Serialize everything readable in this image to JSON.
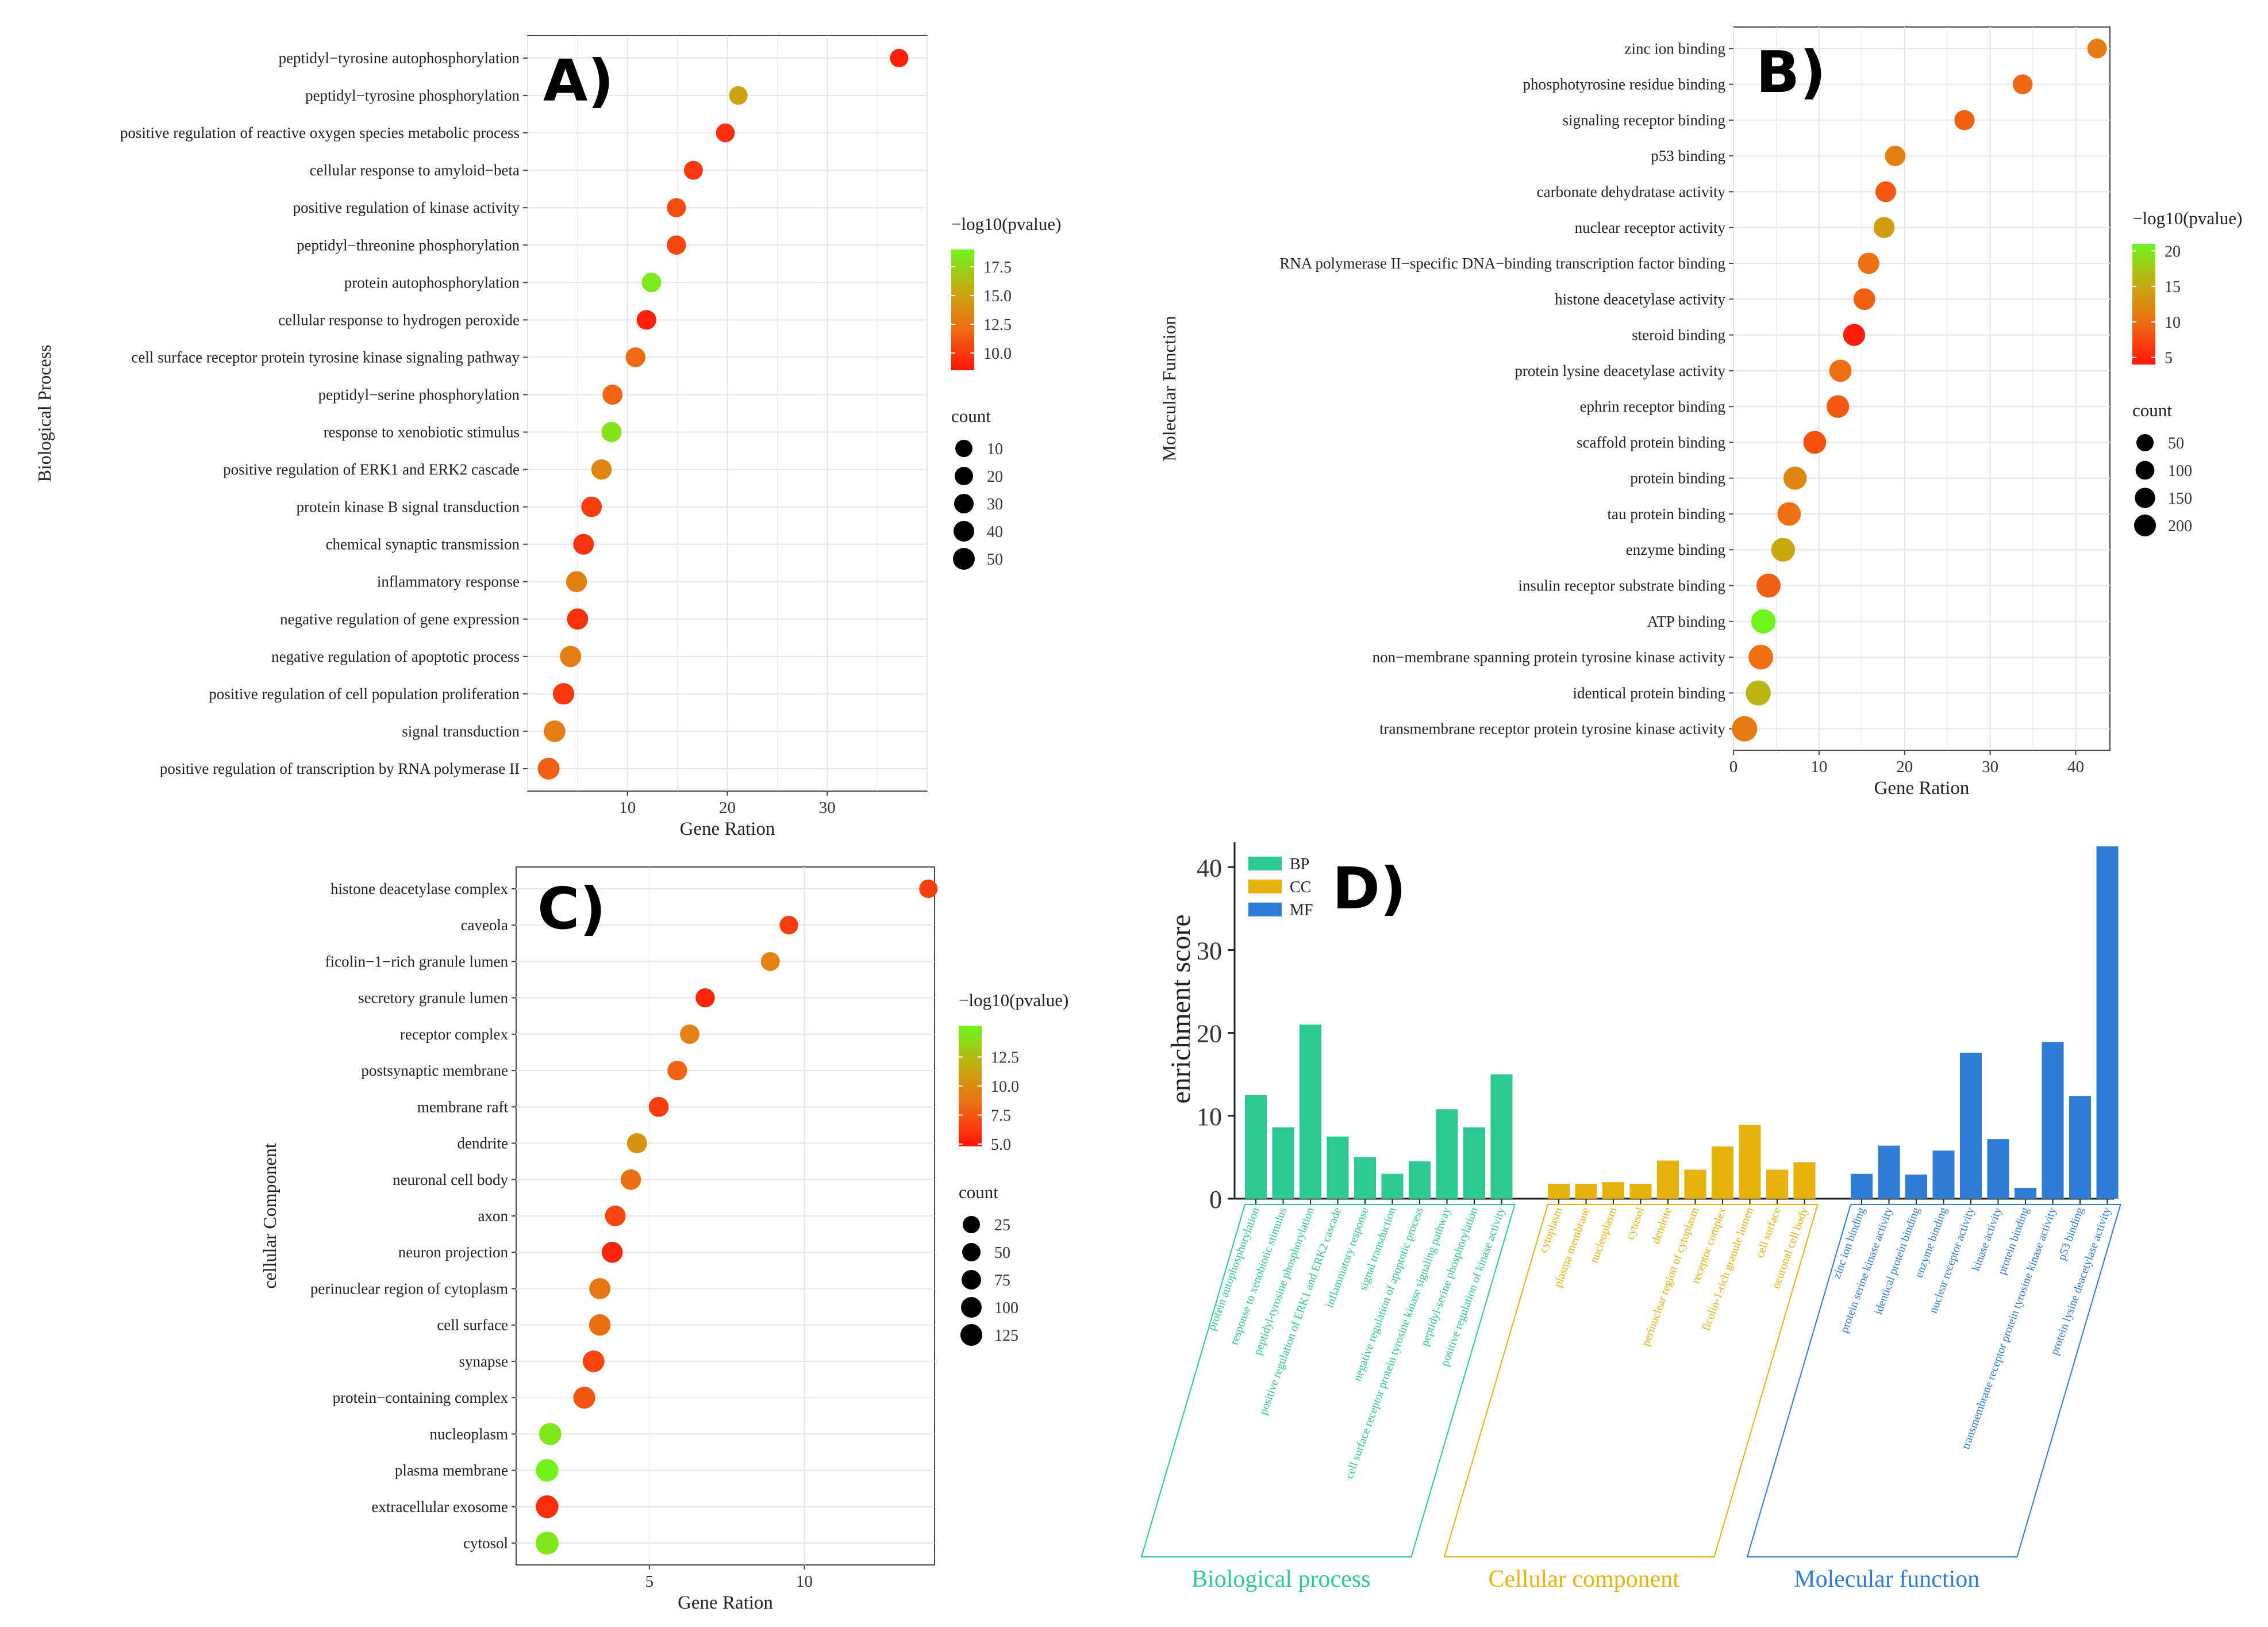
{
  "chart_data": [
    {
      "panel": "A)",
      "type": "scatter",
      "xlabel": "Gene Ration",
      "ylabel": "Biological Process",
      "xlim": [
        0,
        40
      ],
      "xticks": [
        10,
        20,
        30
      ],
      "color_legend_title": "−log10(pvalue)",
      "color_range": [
        8.5,
        19
      ],
      "color_ticks": [
        "17.5",
        "15.0",
        "12.5",
        "10.0"
      ],
      "color_tick_values": [
        17.5,
        15.0,
        12.5,
        10.0
      ],
      "size_legend_title": "count",
      "size_ticks": [
        "10",
        "20",
        "30",
        "40",
        "50"
      ],
      "terms": [
        {
          "label": "peptidyl−tyrosine autophosphorylation",
          "x": 37.2,
          "p": 9.0
        },
        {
          "label": "peptidyl−tyrosine phosphorylation",
          "x": 21.1,
          "p": 15.0
        },
        {
          "label": "positive regulation of reactive oxygen species metabolic process",
          "x": 19.8,
          "p": 9.6
        },
        {
          "label": "cellular response to amyloid−beta",
          "x": 16.6,
          "p": 10.0
        },
        {
          "label": "positive regulation of kinase activity",
          "x": 14.9,
          "p": 10.8
        },
        {
          "label": "peptidyl−threonine phosphorylation",
          "x": 14.9,
          "p": 10.6
        },
        {
          "label": "protein autophosphorylation",
          "x": 12.4,
          "p": 18.5
        },
        {
          "label": "cellular response to hydrogen peroxide",
          "x": 11.9,
          "p": 9.0
        },
        {
          "label": "cell surface receptor protein tyrosine kinase signaling pathway",
          "x": 10.8,
          "p": 12.0
        },
        {
          "label": "peptidyl−serine phosphorylation",
          "x": 8.5,
          "p": 11.8
        },
        {
          "label": "response to xenobiotic stimulus",
          "x": 8.4,
          "p": 18.0
        },
        {
          "label": "positive regulation of ERK1 and ERK2 cascade",
          "x": 7.4,
          "p": 13.5
        },
        {
          "label": "protein kinase B signal transduction",
          "x": 6.4,
          "p": 10.2
        },
        {
          "label": "chemical synaptic transmission",
          "x": 5.6,
          "p": 9.8
        },
        {
          "label": "inflammatory response",
          "x": 4.9,
          "p": 13.2
        },
        {
          "label": "negative regulation of gene expression",
          "x": 5.0,
          "p": 9.7
        },
        {
          "label": "negative regulation of apoptotic process",
          "x": 4.3,
          "p": 13.0
        },
        {
          "label": "positive regulation of cell population proliferation",
          "x": 3.6,
          "p": 10.0
        },
        {
          "label": "signal transduction",
          "x": 2.7,
          "p": 13.0
        },
        {
          "label": "positive regulation of transcription by RNA polymerase II",
          "x": 2.1,
          "p": 11.5
        }
      ]
    },
    {
      "panel": "B)",
      "type": "scatter",
      "xlabel": "Gene Ration",
      "ylabel": "Molecular Function",
      "xlim": [
        0,
        44
      ],
      "xticks": [
        0,
        10,
        20,
        30,
        40
      ],
      "color_legend_title": "−log10(pvalue)",
      "color_range": [
        4,
        21
      ],
      "color_ticks": [
        "20",
        "15",
        "10",
        "5"
      ],
      "color_tick_values": [
        20,
        15,
        10,
        5
      ],
      "size_legend_title": "count",
      "size_ticks": [
        "50",
        "100",
        "150",
        "200"
      ],
      "terms": [
        {
          "label": "zinc ion binding",
          "x": 42.5,
          "p": 11.0
        },
        {
          "label": "phosphotyrosine residue binding",
          "x": 33.8,
          "p": 9.5
        },
        {
          "label": "signaling receptor binding",
          "x": 27.0,
          "p": 9.0
        },
        {
          "label": "p53 binding",
          "x": 18.9,
          "p": 11.5
        },
        {
          "label": "carbonate dehydratase activity",
          "x": 17.8,
          "p": 8.5
        },
        {
          "label": "nuclear receptor activity",
          "x": 17.6,
          "p": 14.0
        },
        {
          "label": "RNA polymerase II−specific DNA−binding transcription factor binding",
          "x": 15.8,
          "p": 10.0
        },
        {
          "label": "histone deacetylase activity",
          "x": 15.3,
          "p": 9.0
        },
        {
          "label": "steroid binding",
          "x": 14.1,
          "p": 4.5
        },
        {
          "label": "protein lysine deacetylase activity",
          "x": 12.5,
          "p": 10.0
        },
        {
          "label": "ephrin receptor binding",
          "x": 12.2,
          "p": 8.5
        },
        {
          "label": "scaffold protein binding",
          "x": 9.5,
          "p": 8.0
        },
        {
          "label": "protein binding",
          "x": 7.2,
          "p": 12.0
        },
        {
          "label": "tau protein binding",
          "x": 6.5,
          "p": 10.0
        },
        {
          "label": "enzyme binding",
          "x": 5.8,
          "p": 15.0
        },
        {
          "label": "insulin receptor substrate binding",
          "x": 4.1,
          "p": 9.0
        },
        {
          "label": "ATP binding",
          "x": 3.5,
          "p": 21.0
        },
        {
          "label": "non−membrane spanning protein tyrosine kinase activity",
          "x": 3.2,
          "p": 10.0
        },
        {
          "label": "identical protein binding",
          "x": 2.9,
          "p": 16.0
        },
        {
          "label": "transmembrane receptor protein tyrosine kinase activity",
          "x": 1.3,
          "p": 11.0
        }
      ]
    },
    {
      "panel": "C)",
      "type": "scatter",
      "xlabel": "Gene Ration",
      "ylabel": "cellular Component",
      "xlim": [
        0.7,
        14.2
      ],
      "xticks": [
        5,
        10
      ],
      "color_legend_title": "−log10(pvalue)",
      "color_range": [
        4.8,
        15.2
      ],
      "color_ticks": [
        "12.5",
        "10.0",
        "7.5",
        "5.0"
      ],
      "color_tick_values": [
        12.5,
        10.0,
        7.5,
        5.0
      ],
      "size_legend_title": "count",
      "size_ticks": [
        "25",
        "50",
        "75",
        "100",
        "125"
      ],
      "terms": [
        {
          "label": "histone deacetylase complex",
          "x": 14.0,
          "p": 6.5
        },
        {
          "label": "caveola",
          "x": 9.5,
          "p": 6.5
        },
        {
          "label": "ficolin−1−rich granule lumen",
          "x": 8.9,
          "p": 9.5
        },
        {
          "label": "secretory granule lumen",
          "x": 6.8,
          "p": 5.5
        },
        {
          "label": "receptor complex",
          "x": 6.3,
          "p": 9.5
        },
        {
          "label": "postsynaptic membrane",
          "x": 5.9,
          "p": 8.0
        },
        {
          "label": "membrane raft",
          "x": 5.3,
          "p": 6.5
        },
        {
          "label": "dendrite",
          "x": 4.6,
          "p": 10.5
        },
        {
          "label": "neuronal cell body",
          "x": 4.4,
          "p": 8.5
        },
        {
          "label": "axon",
          "x": 3.9,
          "p": 6.8
        },
        {
          "label": "neuron projection",
          "x": 3.8,
          "p": 5.5
        },
        {
          "label": "perinuclear region of cytoplasm",
          "x": 3.4,
          "p": 9.0
        },
        {
          "label": "cell surface",
          "x": 3.4,
          "p": 8.5
        },
        {
          "label": "synapse",
          "x": 3.2,
          "p": 6.8
        },
        {
          "label": "protein−containing complex",
          "x": 2.9,
          "p": 7.5
        },
        {
          "label": "nucleoplasm",
          "x": 1.8,
          "p": 14.5
        },
        {
          "label": "plasma membrane",
          "x": 1.7,
          "p": 15.0
        },
        {
          "label": "extracellular exosome",
          "x": 1.7,
          "p": 5.8
        },
        {
          "label": "cytosol",
          "x": 1.7,
          "p": 14.5
        }
      ]
    },
    {
      "panel": "D)",
      "type": "bar",
      "ylabel": "enrichment score",
      "ylim": [
        0,
        43
      ],
      "yticks": [
        0,
        10,
        20,
        30,
        40
      ],
      "legend": [
        {
          "name": "BP",
          "color": "#2dc990"
        },
        {
          "name": "CC",
          "color": "#e8b20e"
        },
        {
          "name": "MF",
          "color": "#2f7bd6"
        }
      ],
      "groups": [
        {
          "name": "Biological process",
          "color": "#2dc990",
          "categories": [
            "protein autophosphorylation",
            "response to xenobiotic stimulus",
            "peptidyl-tyrosine phosphorylation",
            "positive regulation of ERK1 and ERK2 cascade",
            "inflammatory response",
            "signal transduction",
            "negative regulation of apoptotic process",
            "cell surface receptor protein tyrosine kinase signaling pathway",
            "peptidyl-serine phosphorylation",
            "positive regulation of kinase activity"
          ],
          "values": [
            12.5,
            8.6,
            21.0,
            7.5,
            5.0,
            3.0,
            4.5,
            10.8,
            8.6,
            15.0
          ]
        },
        {
          "name": "Cellular component",
          "color": "#e8b20e",
          "categories": [
            "cytoplasm",
            "plasma membrane",
            "nucleoplasm",
            "cytosol",
            "dendrite",
            "perinuclear region of cytoplasm",
            "receptor complex",
            "ficolin-1-rich granule lumen",
            "cell surface",
            "neuronal cell body"
          ],
          "values": [
            1.8,
            1.8,
            2.0,
            1.8,
            4.6,
            3.5,
            6.3,
            8.9,
            3.5,
            4.4
          ]
        },
        {
          "name": "Molecular function",
          "color": "#2f7bd6",
          "categories": [
            "zinc ion binding",
            "protein serine kinase activity",
            "identical protein binding",
            "enzyme binding",
            "nuclear receptor activity",
            "kinase activity",
            "protein binding",
            "transmembrane receptor protein tyrosine kinase activity",
            "p53 binding",
            "protein lysine deacetylase activity"
          ],
          "values": [
            3.0,
            6.4,
            2.9,
            5.8,
            17.6,
            7.2,
            1.3,
            18.9,
            12.4,
            42.5
          ]
        }
      ]
    }
  ]
}
